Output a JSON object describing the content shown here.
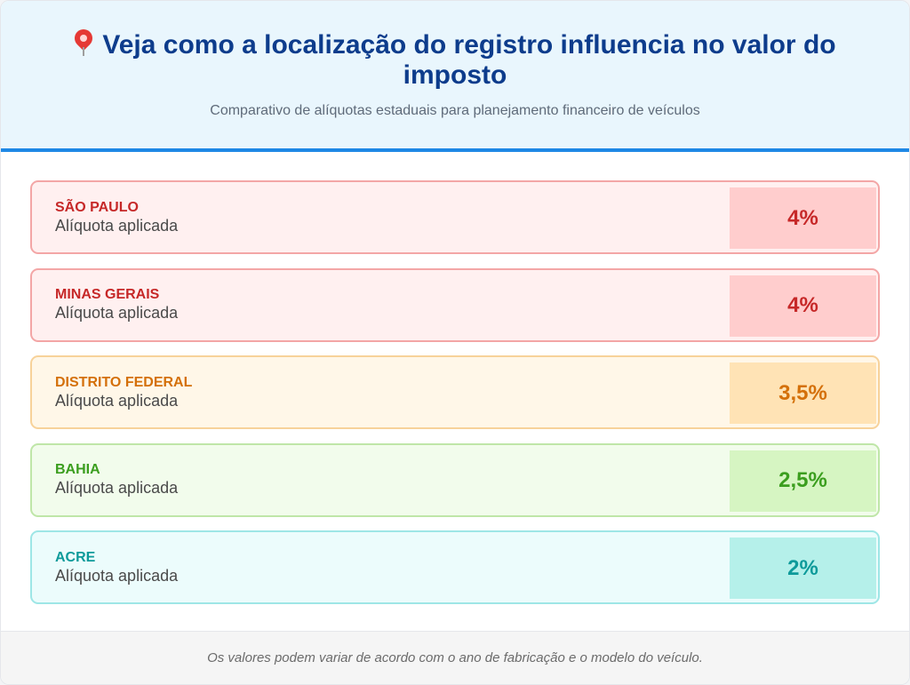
{
  "header": {
    "title": "Veja como a localização do registro influencia no valor do imposto",
    "subtitle": "Comparativo de alíquotas estaduais para planejamento financeiro de veículos",
    "icon": "map-pin-icon"
  },
  "rows": [
    {
      "state": "SÃO PAULO",
      "label": "Alíquota aplicada",
      "rate": "4%",
      "colors": {
        "text": "#c62828",
        "border": "#f3a6a6",
        "bg": "#fff0f0",
        "box": "#ffcdcd"
      }
    },
    {
      "state": "MINAS GERAIS",
      "label": "Alíquota aplicada",
      "rate": "4%",
      "colors": {
        "text": "#c62828",
        "border": "#f3a6a6",
        "bg": "#fff0f0",
        "box": "#ffcdcd"
      }
    },
    {
      "state": "DISTRITO FEDERAL",
      "label": "Alíquota aplicada",
      "rate": "3,5%",
      "colors": {
        "text": "#d4700a",
        "border": "#f7d29a",
        "bg": "#fff7e8",
        "box": "#ffe3b5"
      }
    },
    {
      "state": "BAHIA",
      "label": "Alíquota aplicada",
      "rate": "2,5%",
      "colors": {
        "text": "#3b9e1e",
        "border": "#bfe6a8",
        "bg": "#f2fcec",
        "box": "#d6f5c2"
      }
    },
    {
      "state": "ACRE",
      "label": "Alíquota aplicada",
      "rate": "2%",
      "colors": {
        "text": "#0d9a9a",
        "border": "#9ee6e6",
        "bg": "#ecfcfc",
        "box": "#b5f0ea"
      }
    }
  ],
  "footer": {
    "note": "Os valores podem variar de acordo com o ano de fabricação e o modelo do veículo."
  }
}
